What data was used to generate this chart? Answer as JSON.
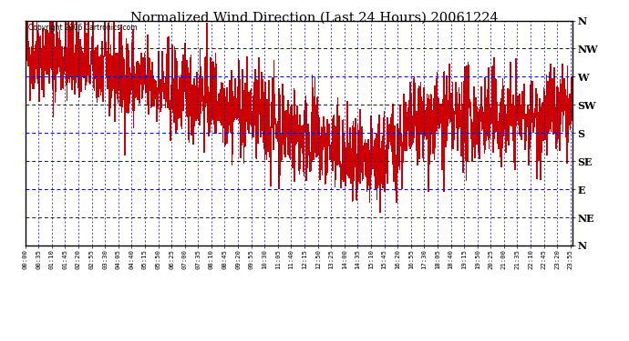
{
  "title": "Normalized Wind Direction (Last 24 Hours) 20061224",
  "copyright": "Copyright 2006 Cartronics.com",
  "bg_color": "#ffffff",
  "plot_bg_color": "#ffffff",
  "line_color": "#cc0000",
  "grid_color": "#0000cc",
  "border_color": "#000000",
  "ytick_labels": [
    "N",
    "NE",
    "E",
    "SE",
    "S",
    "SW",
    "W",
    "NW",
    "N"
  ],
  "ytick_values": [
    0,
    1,
    2,
    3,
    4,
    5,
    6,
    7,
    8
  ],
  "xtick_labels": [
    "00:00",
    "00:35",
    "01:10",
    "01:45",
    "02:20",
    "02:55",
    "03:30",
    "04:05",
    "04:40",
    "05:15",
    "05:50",
    "06:25",
    "07:00",
    "07:35",
    "08:10",
    "08:45",
    "09:20",
    "09:55",
    "10:30",
    "11:05",
    "11:40",
    "12:15",
    "12:50",
    "13:25",
    "14:00",
    "14:35",
    "15:10",
    "15:45",
    "16:20",
    "16:55",
    "17:30",
    "18:05",
    "18:40",
    "19:15",
    "19:50",
    "20:25",
    "21:00",
    "21:35",
    "22:10",
    "22:45",
    "23:20",
    "23:55"
  ],
  "seed": 42,
  "n_points": 1440
}
